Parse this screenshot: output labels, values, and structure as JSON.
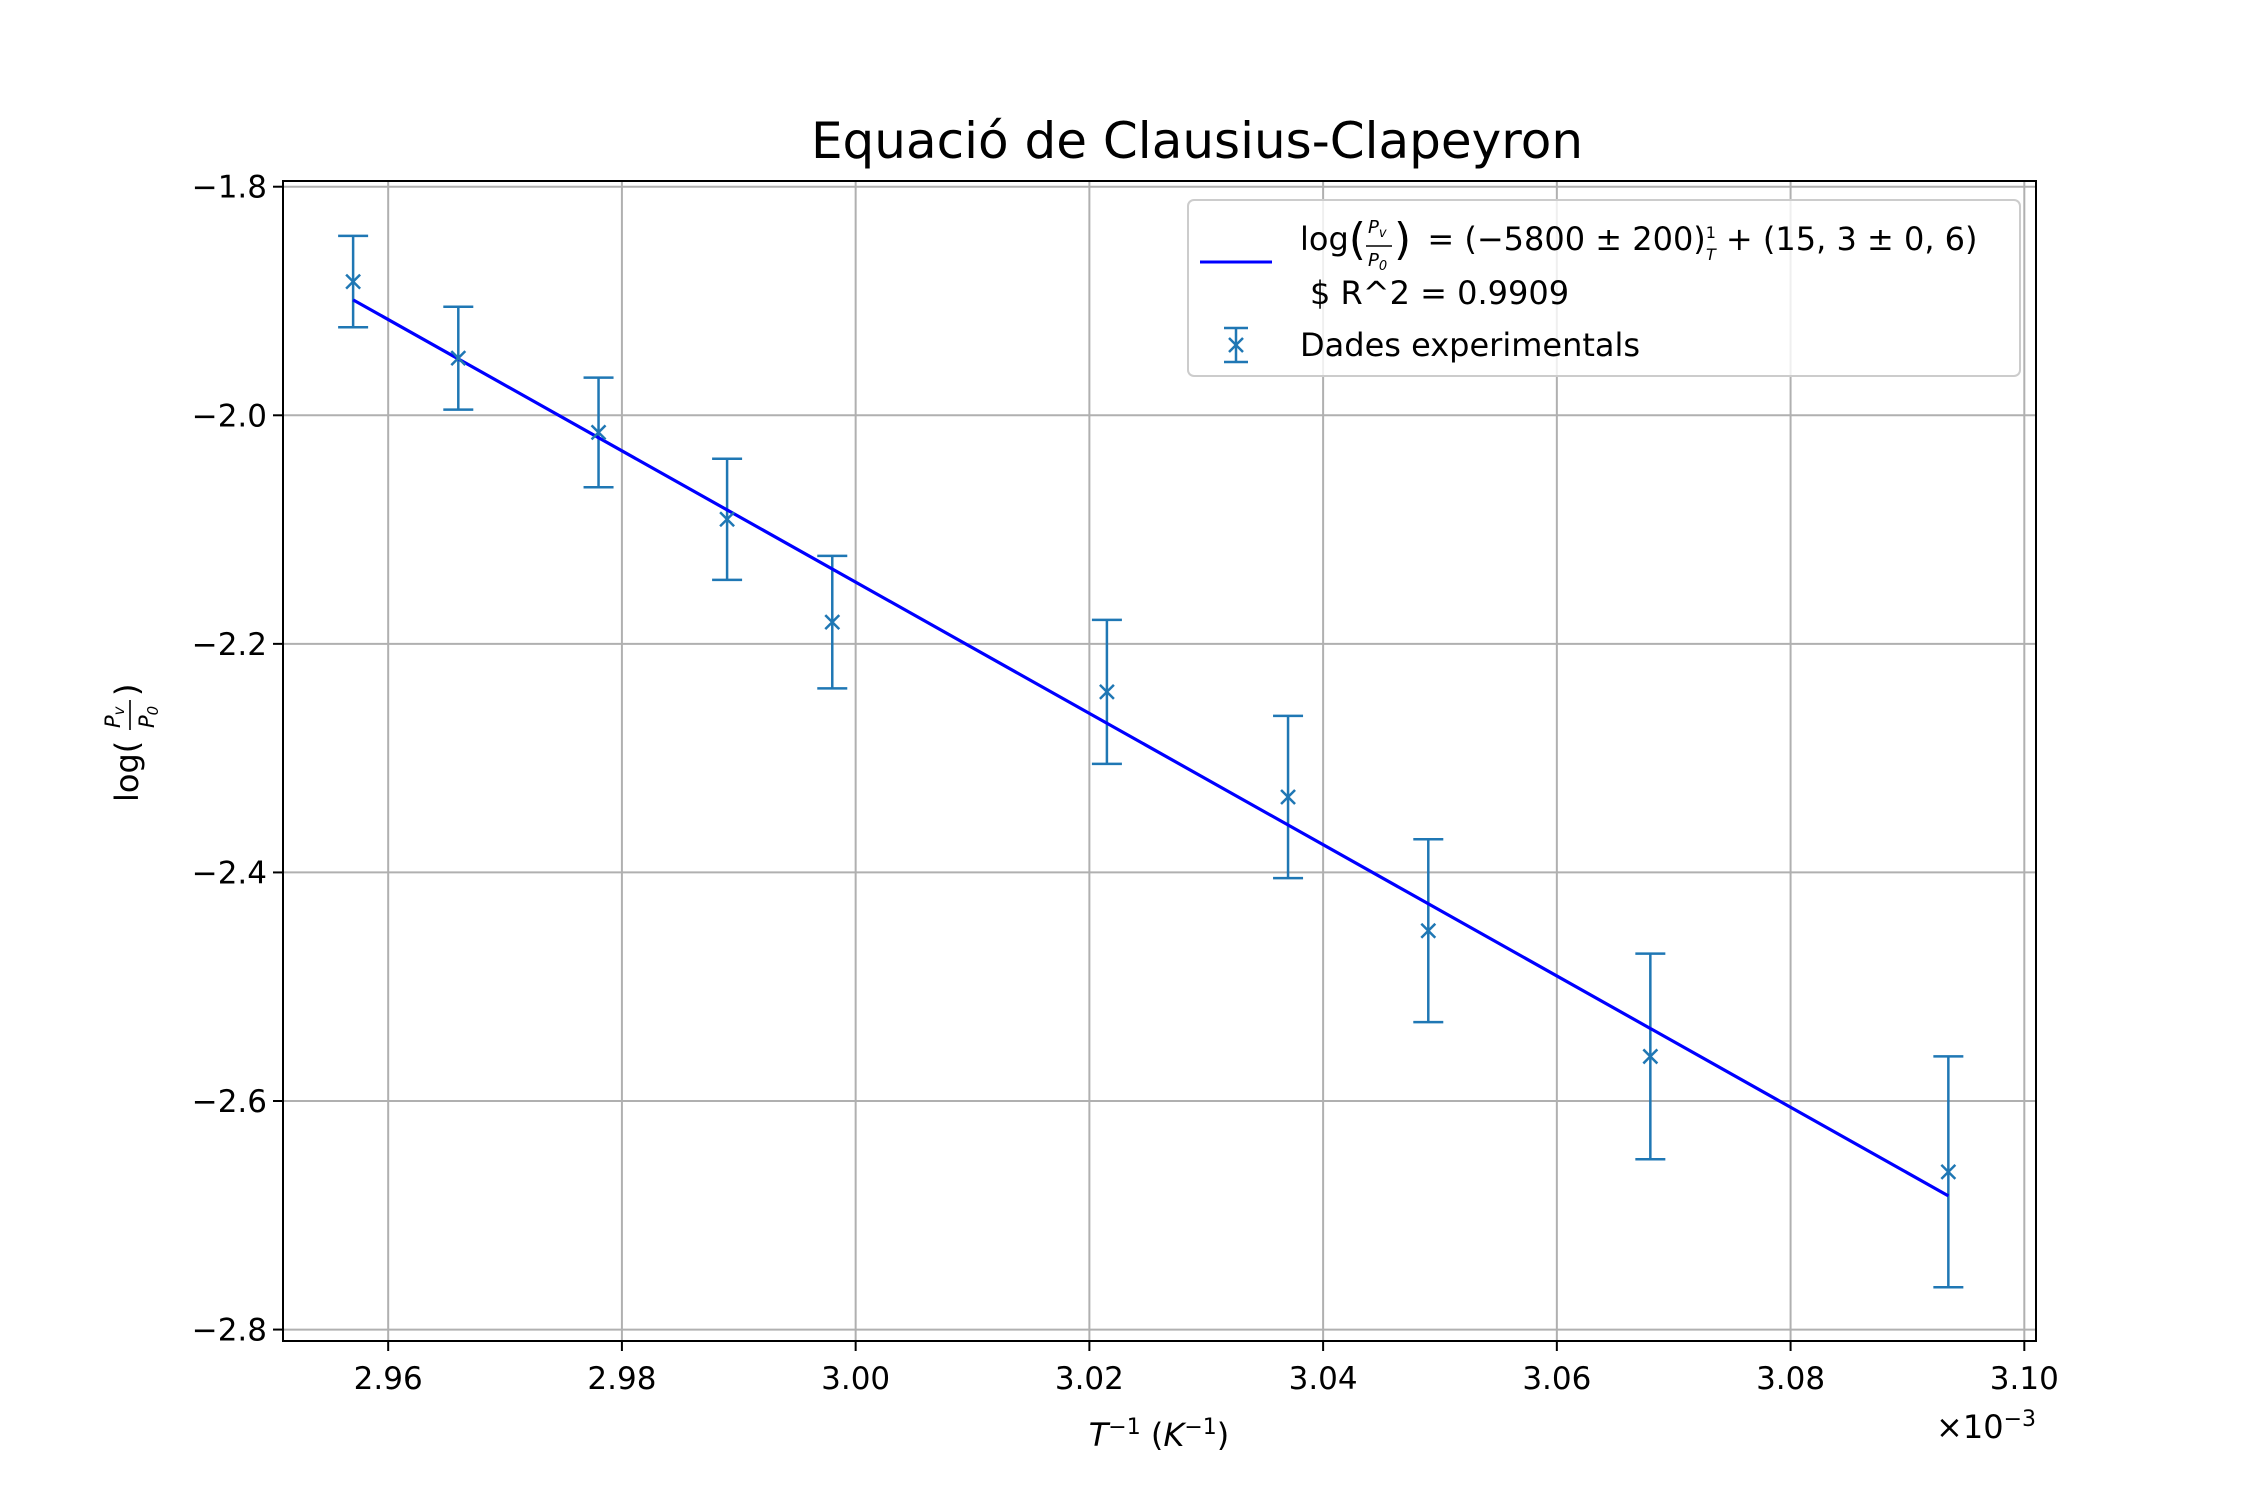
{
  "chart_data": {
    "type": "scatter",
    "title": "Equació de Clausius-Clapeyron",
    "xlabel": "T⁻¹ (K⁻¹)",
    "ylabel": "log(Pv/P0)",
    "x_offset_label": "×10⁻³",
    "xlim": [
      2.951,
      3.101
    ],
    "ylim": [
      -2.81,
      -1.795
    ],
    "xticks": [
      2.96,
      2.98,
      3.0,
      3.02,
      3.04,
      3.06,
      3.08,
      3.1
    ],
    "xtick_labels": [
      "2.96",
      "2.98",
      "3.00",
      "3.02",
      "3.04",
      "3.06",
      "3.08",
      "3.10"
    ],
    "yticks": [
      -1.8,
      -2.0,
      -2.2,
      -2.4,
      -2.6,
      -2.8
    ],
    "ytick_labels": [
      "−1.8",
      "−2.0",
      "−2.2",
      "−2.4",
      "−2.6",
      "−2.8"
    ],
    "grid": true,
    "legend_position": "top-right",
    "series": [
      {
        "name": "Dades experimentals",
        "kind": "errorbar",
        "color": "#1f77b4",
        "marker": "x",
        "x": [
          2.957,
          2.966,
          2.978,
          2.989,
          2.998,
          3.0215,
          3.037,
          3.049,
          3.068,
          3.0935
        ],
        "y": [
          -1.883,
          -1.95,
          -2.015,
          -2.091,
          -2.181,
          -2.242,
          -2.334,
          -2.451,
          -2.561,
          -2.662
        ],
        "yerr": [
          0.04,
          0.045,
          0.048,
          0.053,
          0.058,
          0.063,
          0.071,
          0.08,
          0.09,
          0.101
        ]
      },
      {
        "name": "log(Pv/P0) = (−5800 ± 200)1/T + (15,3 ± 0,6)",
        "name_line2": "$ R^2 = 0.9909",
        "kind": "line",
        "color": "#0000ff",
        "x": [
          2.957,
          3.0935
        ],
        "y": [
          -1.899,
          -2.683
        ]
      }
    ]
  }
}
